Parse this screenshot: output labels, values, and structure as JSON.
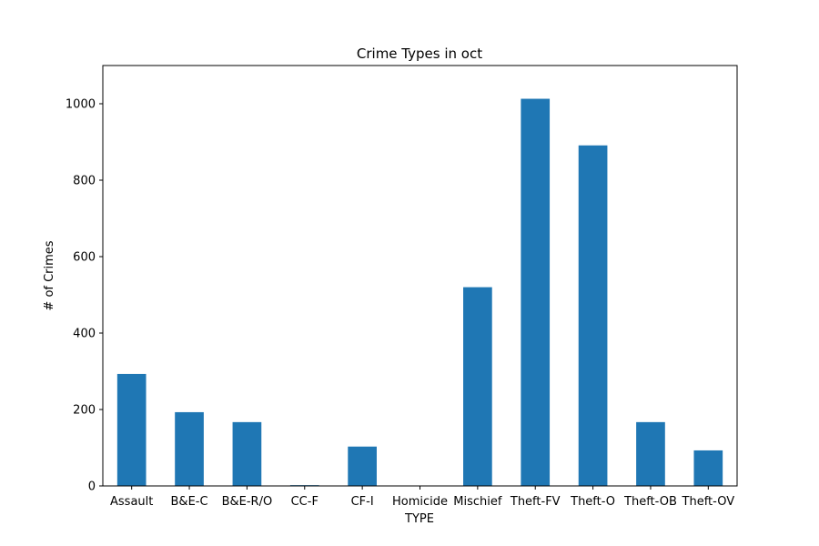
{
  "chart_data": {
    "type": "bar",
    "title": "Crime Types in oct",
    "xlabel": "TYPE",
    "ylabel": "# of Crimes",
    "categories": [
      "Assault",
      "B&E-C",
      "B&E-R/O",
      "CC-F",
      "CF-I",
      "Homicide",
      "Mischief",
      "Theft-FV",
      "Theft-O",
      "Theft-OB",
      "Theft-OV"
    ],
    "values": [
      293,
      193,
      167,
      2,
      103,
      0,
      520,
      1013,
      891,
      167,
      93
    ],
    "ylim": [
      0,
      1100
    ],
    "yticks": [
      0,
      200,
      400,
      600,
      800,
      1000
    ],
    "bar_color": "#1f77b4",
    "grid": false,
    "legend": "none"
  }
}
